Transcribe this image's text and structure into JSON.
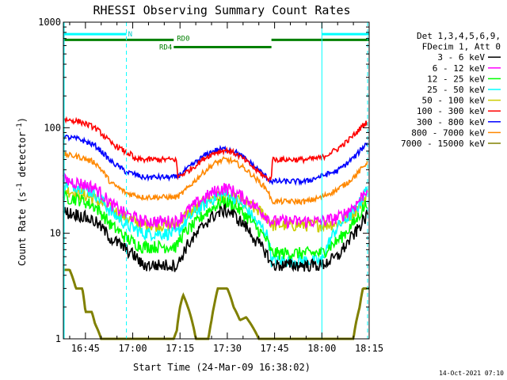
{
  "chart_data": {
    "type": "line",
    "title": "RHESSI Observing Summary Count Rates",
    "xlabel": "Start Time (24-Mar-09 16:38:02)",
    "ylabel_parts": [
      "Count Rate (s",
      "-1",
      " detector",
      "-1",
      ")"
    ],
    "yscale": "log",
    "ylim": [
      1,
      1000
    ],
    "yticks": [
      {
        "value": 1,
        "label": "1"
      },
      {
        "value": 10,
        "label": "10"
      },
      {
        "value": 100,
        "label": "100"
      },
      {
        "value": 1000,
        "label": "1000"
      }
    ],
    "xlim_minutes": [
      38,
      135
    ],
    "xticks": [
      {
        "minutes": 45,
        "label": "16:45"
      },
      {
        "minutes": 60,
        "label": "17:00"
      },
      {
        "minutes": 75,
        "label": "17:15"
      },
      {
        "minutes": 90,
        "label": "17:30"
      },
      {
        "minutes": 105,
        "label": "17:45"
      },
      {
        "minutes": 120,
        "label": "18:00"
      },
      {
        "minutes": 135,
        "label": "18:15"
      }
    ],
    "legend_header": [
      "Det 1,3,4,5,6,9,",
      "FDecim 1, Att 0"
    ],
    "legend_position": "right",
    "series": [
      {
        "name": "3 - 6 keV",
        "color": "#000000",
        "x": [
          38,
          43,
          48,
          53,
          58,
          61,
          63,
          66,
          69,
          71,
          73,
          74,
          75,
          77,
          80,
          83,
          86,
          89,
          91,
          93,
          96,
          99,
          102,
          103,
          104,
          107,
          110,
          115,
          120,
          125,
          128,
          131,
          133,
          134.5
        ],
        "y": [
          16,
          15,
          13,
          9,
          7,
          6,
          5,
          5,
          5,
          5,
          5,
          5,
          5.5,
          7.5,
          9.5,
          12.5,
          15,
          16.5,
          16,
          14,
          11.5,
          8.5,
          6.8,
          6,
          5,
          5,
          5,
          5,
          5,
          6,
          8,
          10.5,
          13,
          15
        ]
      },
      {
        "name": "6 - 12 keV",
        "color": "#ff00ff",
        "x": [
          38,
          43,
          48,
          53,
          58,
          61,
          63,
          66,
          69,
          71,
          73,
          74,
          75,
          77,
          80,
          83,
          86,
          89,
          91,
          93,
          96,
          99,
          102,
          103,
          104,
          107,
          110,
          115,
          120,
          125,
          128,
          131,
          133,
          134.5
        ],
        "y": [
          32,
          30,
          27,
          19,
          15,
          14,
          13,
          13,
          13,
          13,
          13,
          13,
          14,
          16,
          19,
          22,
          25,
          27,
          26,
          24,
          21,
          18,
          15,
          14,
          13,
          13,
          13,
          13,
          13,
          14,
          16,
          19,
          23,
          27
        ]
      },
      {
        "name": "12 - 25 keV",
        "color": "#00ff00",
        "x": [
          38,
          43,
          48,
          53,
          58,
          61,
          63,
          66,
          69,
          71,
          73,
          74,
          75,
          77,
          80,
          83,
          86,
          89,
          91,
          93,
          96,
          99,
          102,
          103,
          104,
          107,
          110,
          115,
          120,
          125,
          128,
          131,
          133,
          134.5
        ],
        "y": [
          22,
          21,
          18,
          12,
          9,
          8,
          7.5,
          7.5,
          7.5,
          7.5,
          7.5,
          7.5,
          9,
          10.5,
          12.5,
          15.5,
          18,
          20,
          19,
          17.5,
          14.5,
          11.5,
          9,
          8,
          6.5,
          6.5,
          6.5,
          6.5,
          6.5,
          8.5,
          10.5,
          13.5,
          17,
          20
        ]
      },
      {
        "name": "25 - 50 keV",
        "color": "#00ffff",
        "x": [
          38,
          43,
          48,
          53,
          58,
          61,
          63,
          66,
          69,
          71,
          73,
          74,
          75,
          77,
          80,
          83,
          86,
          89,
          91,
          93,
          96,
          99,
          102,
          103,
          104,
          107,
          110,
          115,
          120,
          125,
          128,
          131,
          133,
          134.5
        ],
        "y": [
          30,
          28,
          24,
          16,
          12,
          11,
          10,
          10,
          10,
          10,
          10,
          10,
          11,
          13,
          16,
          19,
          22,
          23.5,
          22.5,
          20.5,
          17,
          13,
          10.5,
          9,
          5.5,
          5.5,
          5.5,
          5.5,
          5.5,
          11.5,
          14,
          17,
          22,
          27
        ]
      },
      {
        "name": "50 - 100 keV",
        "color": "#cccc00",
        "x": [
          38,
          43,
          48,
          53,
          58,
          61,
          63,
          66,
          69,
          71,
          73,
          74,
          75,
          77,
          80,
          83,
          86,
          89,
          91,
          93,
          96,
          99,
          102,
          103,
          104,
          107,
          110,
          115,
          120,
          125,
          128,
          131,
          133,
          134.5
        ],
        "y": [
          26,
          24,
          21,
          17,
          14,
          13,
          12,
          12,
          12,
          12,
          12,
          12,
          13,
          15,
          17,
          20,
          22,
          23,
          22,
          21,
          19,
          17,
          15,
          13.5,
          12,
          12,
          12,
          12,
          12,
          12.5,
          14,
          17,
          20,
          24
        ]
      },
      {
        "name": "100 - 300 keV",
        "color": "#ff0000",
        "x": [
          38,
          43,
          48,
          53,
          58,
          60,
          60.1,
          66,
          72,
          74,
          74.1,
          77,
          80,
          83,
          86,
          89,
          91,
          93,
          96,
          99,
          102,
          104,
          104.1,
          110,
          115,
          120,
          125,
          128,
          131,
          133,
          134.5
        ],
        "y": [
          120,
          115,
          100,
          72,
          58,
          55,
          50,
          50,
          50,
          50,
          34,
          38,
          44,
          52,
          58,
          61,
          60,
          56,
          48,
          40,
          34,
          32,
          50,
          50,
          50,
          52,
          63,
          74,
          90,
          105,
          115
        ]
      },
      {
        "name": "300 - 800 keV",
        "color": "#0000ff",
        "x": [
          38,
          43,
          48,
          53,
          58,
          61,
          63,
          66,
          69,
          71,
          73,
          74,
          75,
          77,
          80,
          83,
          86,
          89,
          91,
          93,
          96,
          99,
          102,
          103,
          104,
          107,
          110,
          115,
          120,
          125,
          128,
          131,
          133,
          134.5
        ],
        "y": [
          82,
          78,
          68,
          48,
          38,
          36,
          34,
          34,
          34,
          34,
          34,
          34,
          36,
          40,
          47,
          55,
          61,
          63,
          62,
          58,
          50,
          42,
          35,
          33,
          31,
          31,
          31,
          31,
          35,
          39,
          46,
          55,
          65,
          73
        ]
      },
      {
        "name": "800 - 7000 keV",
        "color": "#ff8800",
        "x": [
          38,
          43,
          48,
          53,
          58,
          61,
          63,
          66,
          69,
          71,
          73,
          74,
          75,
          77,
          80,
          83,
          86,
          89,
          91,
          93,
          96,
          99,
          102,
          103,
          104,
          107,
          110,
          115,
          120,
          125,
          128,
          131,
          133,
          134.5
        ],
        "y": [
          56,
          53,
          47,
          30,
          24,
          23,
          22,
          22,
          22,
          22,
          22,
          22,
          23,
          26,
          32,
          39,
          46,
          50,
          49,
          46,
          40,
          33,
          27,
          25,
          20,
          20,
          20,
          20,
          22,
          26,
          30,
          36,
          42,
          48
        ]
      },
      {
        "name": "7000 - 15000 keV",
        "color": "#808000",
        "x": [
          38,
          40,
          42,
          44,
          45,
          47,
          48,
          50,
          52,
          55,
          60,
          65,
          70,
          73,
          74,
          75,
          76,
          77,
          78,
          80,
          82,
          84,
          85,
          86,
          87,
          88,
          89,
          90,
          92,
          94,
          96,
          98,
          100,
          105,
          110,
          115,
          120,
          122,
          124,
          126,
          128,
          130,
          131,
          132,
          133,
          134,
          135
        ],
        "y": [
          4.5,
          4.5,
          3,
          3,
          1.8,
          1.8,
          1.4,
          1,
          1,
          1,
          1,
          1,
          1,
          1,
          1.2,
          2,
          2.6,
          2.2,
          1.8,
          1,
          1,
          1,
          1.5,
          2.2,
          3,
          3,
          3,
          3,
          2,
          1.5,
          1.6,
          1.3,
          1,
          1,
          1,
          1,
          1,
          1,
          1,
          1,
          1,
          1,
          1.5,
          2,
          3,
          3,
          3
        ]
      }
    ],
    "annotations": {
      "cyan_bars": [
        {
          "x_start": 38,
          "x_end": 58,
          "y": 770,
          "label": "N"
        },
        {
          "x_start": 120,
          "x_end": 135,
          "y": 770,
          "label": ""
        }
      ],
      "green_bars": [
        {
          "x_start": 38,
          "x_end": 73,
          "y": 680,
          "label": "RD0"
        },
        {
          "x_start": 104,
          "x_end": 135,
          "y": 680,
          "label": ""
        },
        {
          "x_start": 73,
          "x_end": 104,
          "y": 580,
          "label": "RD4"
        }
      ],
      "cyan_vlines_solid": [
        120
      ],
      "cyan_vlines_dashed": [
        58,
        134.5
      ]
    }
  },
  "timestamp": "14-Oct-2021 07:10"
}
